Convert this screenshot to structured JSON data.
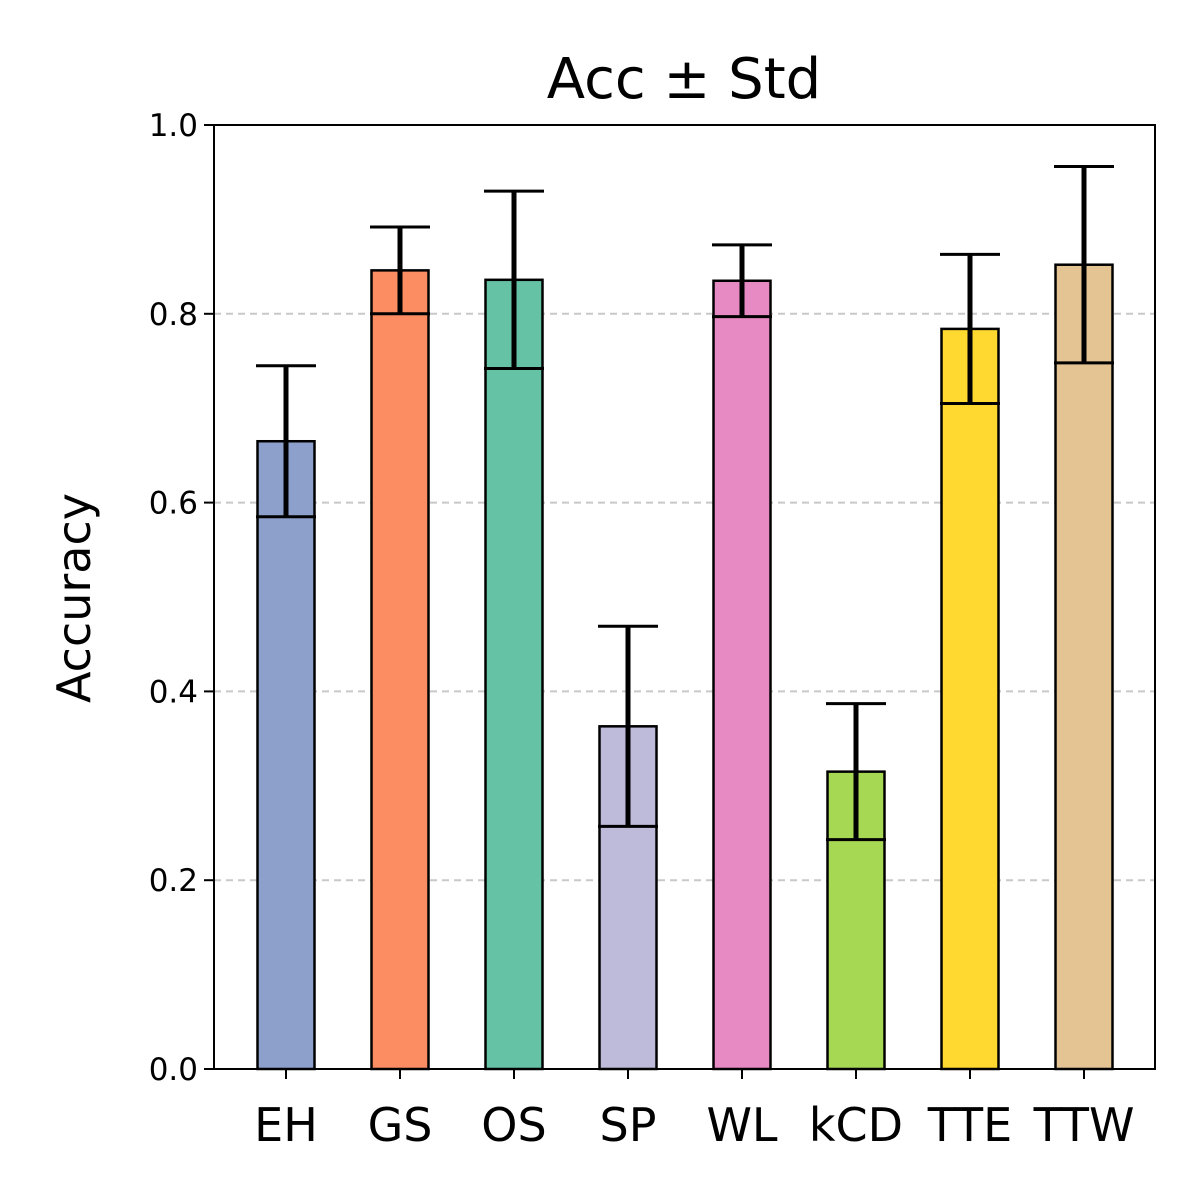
{
  "chart_data": {
    "type": "bar",
    "title": "Acc ± Std",
    "xlabel": "",
    "ylabel": "Accuracy",
    "ylim": [
      0.0,
      1.0
    ],
    "yticks": [
      "0.0",
      "0.2",
      "0.4",
      "0.6",
      "0.8",
      "1.0"
    ],
    "grid": "y-dashed",
    "categories": [
      "EH",
      "GS",
      "OS",
      "SP",
      "WL",
      "kCD",
      "TTE",
      "TTW"
    ],
    "values": [
      0.665,
      0.846,
      0.836,
      0.363,
      0.835,
      0.315,
      0.784,
      0.852
    ],
    "errors": [
      0.08,
      0.046,
      0.094,
      0.106,
      0.038,
      0.072,
      0.079,
      0.104
    ],
    "colors": [
      "#8da0cb",
      "#fc8d62",
      "#66c2a5",
      "#bebada",
      "#e78ac3",
      "#a6d854",
      "#ffd92f",
      "#e5c494"
    ]
  }
}
